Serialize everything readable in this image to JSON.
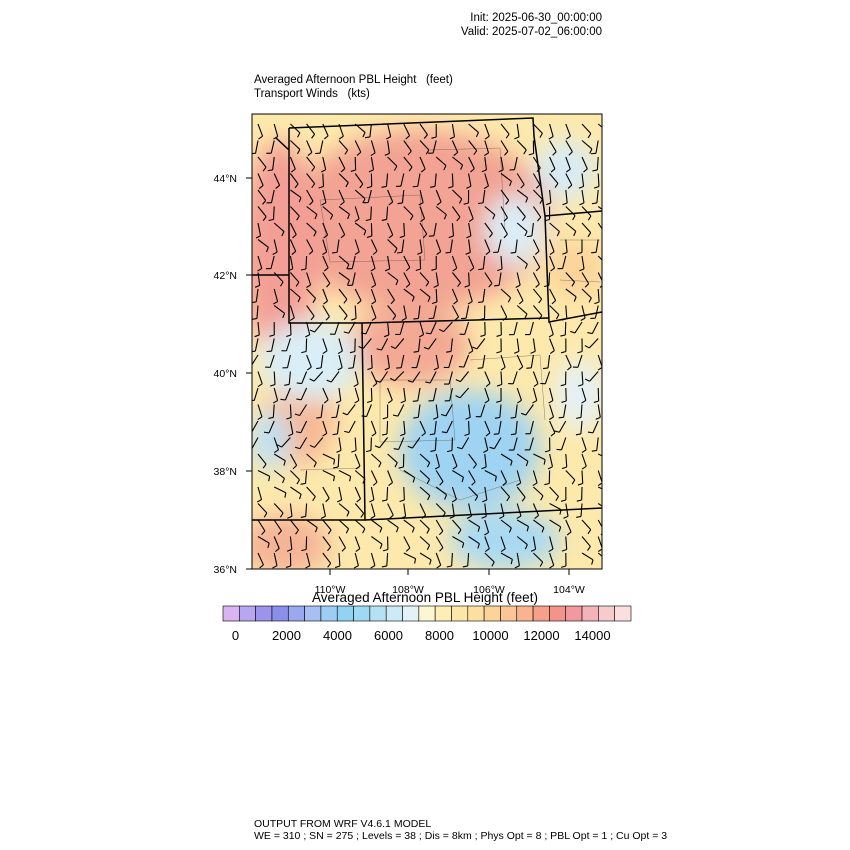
{
  "header": {
    "init": "Init: 2025-06-30_00:00:00",
    "valid": "Valid: 2025-07-02_06:00:00"
  },
  "titles": {
    "line1": "Averaged Afternoon PBL Height   (feet)",
    "line2": "Transport Winds   (kts)"
  },
  "map": {
    "lat_range": [
      36,
      45.3
    ],
    "lon_range": [
      111.7,
      103.2
    ],
    "lat_ticks": [
      "36°N",
      "38°N",
      "40°N",
      "42°N",
      "44°N"
    ],
    "lon_ticks": [
      "110°W",
      "108°W",
      "106°W",
      "104°W"
    ],
    "field": "Averaged Afternoon PBL Height",
    "units": "feet",
    "wind_units": "kts"
  },
  "colorbar": {
    "title": "Averaged Afternoon PBL Height  (feet)",
    "labels": [
      "0",
      "2000",
      "4000",
      "6000",
      "8000",
      "10000",
      "12000",
      "14000"
    ],
    "colors": [
      "#d8b4f2",
      "#b8a6f0",
      "#9b93ec",
      "#8a8fe8",
      "#9aa8f0",
      "#a8bff4",
      "#9dcdf4",
      "#90d4f2",
      "#9ed8f2",
      "#b4e2f4",
      "#cdebf6",
      "#e2f2f8",
      "#fbf7d2",
      "#fdeeb6",
      "#fde7a6",
      "#fde0a0",
      "#fcd49a",
      "#fbc596",
      "#f9b38f",
      "#f6a08b",
      "#f39389",
      "#f09aa0",
      "#f3b4b8",
      "#f7cbcd",
      "#fbdfe0"
    ]
  },
  "footer": {
    "line1": "OUTPUT FROM WRF V4.6.1 MODEL",
    "line2": "WE = 310 ; SN = 275 ; Levels = 38 ; Dis = 8km ; Phys Opt = 8 ; PBL Opt = 1 ; Cu Opt = 3"
  }
}
